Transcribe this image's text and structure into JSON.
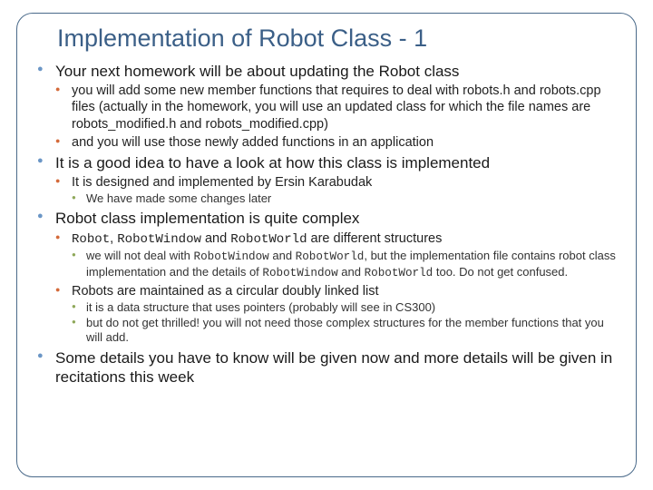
{
  "title": "Implementation of Robot Class - 1",
  "colors": {
    "title_color": "#3b5f87",
    "border_color": "#4a6a8a",
    "bullet_l1": "#6b96c6",
    "bullet_l2": "#d46a3a",
    "bullet_l3": "#8fa85a",
    "text_color": "#1a1a1a",
    "background": "#ffffff"
  },
  "typography": {
    "title_fontsize": 27,
    "l1_fontsize": 17,
    "l2_fontsize": 14.5,
    "l3_fontsize": 13,
    "font_family": "Arial",
    "mono_family": "Courier New"
  },
  "b1": {
    "t": "Your next homework will be about updating the Robot class",
    "s1": "you will add some new member functions that requires to deal with robots.h and robots.cpp files (actually in the homework, you will use an updated class for which the file names are robots_modified.h and robots_modified.cpp)",
    "s2": "and you will use those newly added functions in an application"
  },
  "b2": {
    "t": "It is a good idea to have a look at how this class is implemented",
    "s1": "It is designed and implemented by Ersin Karabudak",
    "s1a": "We have made some changes later"
  },
  "b3": {
    "t": "Robot class implementation is quite complex",
    "s1_pre": "Robot",
    "s1_mid1": ", ",
    "s1_code2": "RobotWindow",
    "s1_mid2": " and ",
    "s1_code3": "RobotWorld",
    "s1_post": " are different structures",
    "s1a_pre": "we will not deal with ",
    "s1a_c1": "RobotWindow",
    "s1a_m1": " and ",
    "s1a_c2": "RobotWorld",
    "s1a_m2": ", but the implementation file contains robot class implementation and the details of ",
    "s1a_c3": "RobotWindow",
    "s1a_m3": " and ",
    "s1a_c4": "RobotWorld",
    "s1a_post": " too. Do not get confused.",
    "s2": "Robots are maintained as a circular doubly linked list",
    "s2a": "it is a data structure that uses pointers (probably will see in CS300)",
    "s2b": "but do not get thrilled! you will not need those complex structures for the member functions that you will add."
  },
  "b4": {
    "t": "Some details you have to know will be given now and more details will be given in recitations this week"
  }
}
